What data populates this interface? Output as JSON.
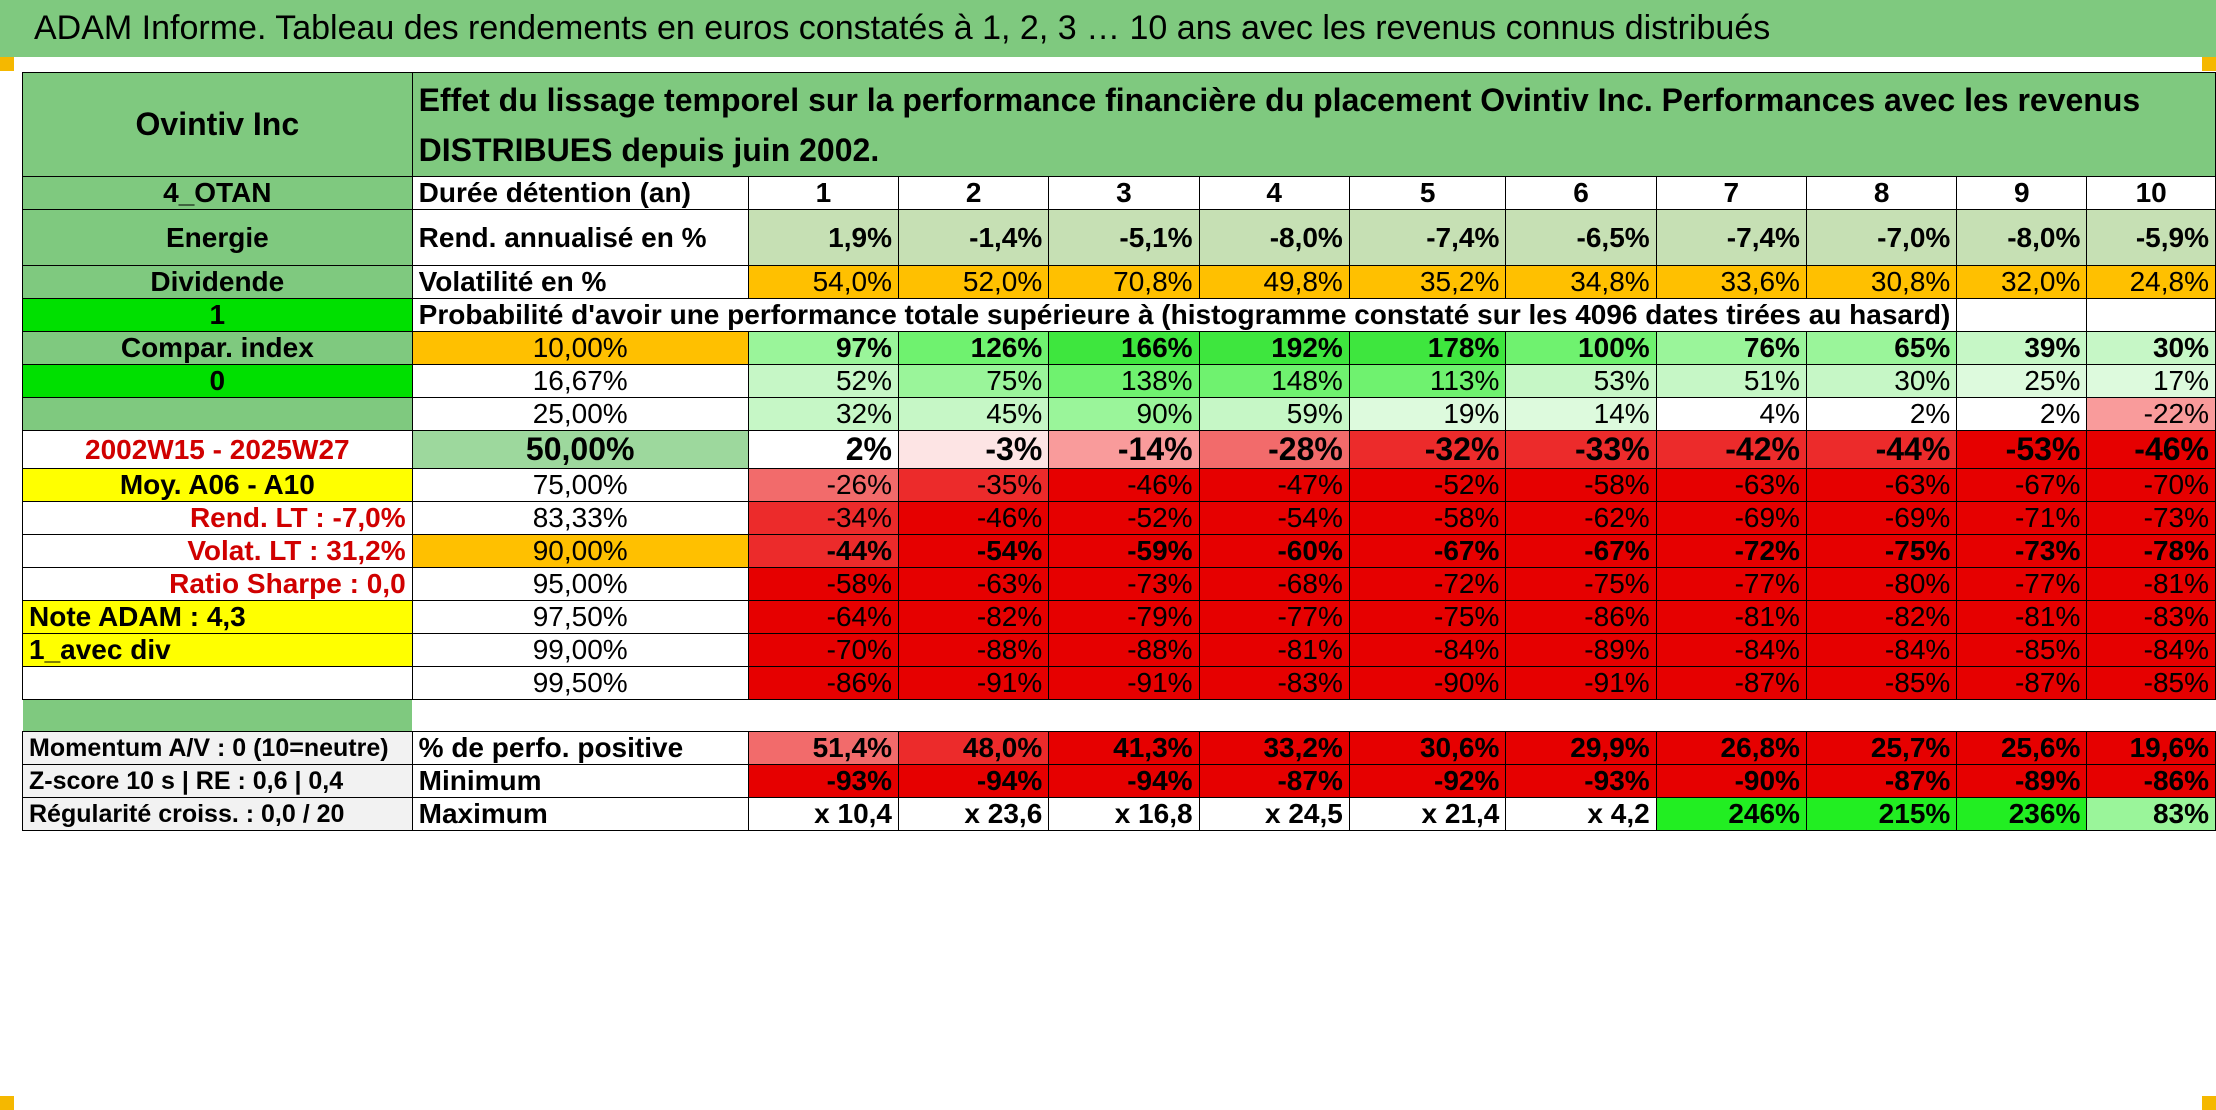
{
  "title": "ADAM Informe. Tableau des rendements en euros constatés à 1, 2, 3 … 10 ans avec les revenus connus distribués",
  "fund_name": "Ovintiv Inc",
  "description": "Effet du lissage temporel sur la performance financière du placement Ovintiv Inc. Performances avec les revenus DISTRIBUES depuis juin 2002.",
  "left": {
    "code": "4_OTAN",
    "sector": "Energie",
    "dividend": "Dividende",
    "one": "1",
    "compar": "Compar. index",
    "zero": "0",
    "period": "2002W15 - 2025W27",
    "moy": "Moy. A06 - A10",
    "rend_lt": "Rend. LT :   -7,0%",
    "volat_lt": "Volat. LT :   31,2%",
    "sharpe": "Ratio Sharpe :   0,0",
    "note": "Note ADAM : 4,3",
    "avec_div": "1_avec div",
    "momentum": "Momentum A/V : 0 (10=neutre)",
    "zscore": "Z-score 10 s | RE : 0,6 | 0,4",
    "regularite": "Régularité croiss. : 0,0 / 20"
  },
  "labels": {
    "duree": "Durée détention (an)",
    "rend": "Rend. annualisé en %",
    "vol": "Volatilité en %",
    "proba": "Probabilité d'avoir une performance totale supérieure à (histogramme constaté sur les 4096 dates tirées au hasard)",
    "perfpos": "% de perfo. positive",
    "min": "Minimum",
    "max": "Maximum"
  },
  "years": [
    "1",
    "2",
    "3",
    "4",
    "5",
    "6",
    "7",
    "8",
    "9",
    "10"
  ],
  "rend": [
    "1,9%",
    "-1,4%",
    "-5,1%",
    "-8,0%",
    "-7,4%",
    "-6,5%",
    "-7,4%",
    "-7,0%",
    "-8,0%",
    "-5,9%"
  ],
  "vol": [
    "54,0%",
    "52,0%",
    "70,8%",
    "49,8%",
    "35,2%",
    "34,8%",
    "33,6%",
    "30,8%",
    "32,0%",
    "24,8%"
  ],
  "prob_rows": [
    {
      "p": "10,00%",
      "v": [
        "97%",
        "126%",
        "166%",
        "192%",
        "178%",
        "100%",
        "76%",
        "65%",
        "39%",
        "30%"
      ]
    },
    {
      "p": "16,67%",
      "v": [
        "52%",
        "75%",
        "138%",
        "148%",
        "113%",
        "53%",
        "51%",
        "30%",
        "25%",
        "17%"
      ]
    },
    {
      "p": "25,00%",
      "v": [
        "32%",
        "45%",
        "90%",
        "59%",
        "19%",
        "14%",
        "4%",
        "2%",
        "2%",
        "-22%"
      ]
    },
    {
      "p": "50,00%",
      "v": [
        "2%",
        "-3%",
        "-14%",
        "-28%",
        "-32%",
        "-33%",
        "-42%",
        "-44%",
        "-53%",
        "-46%"
      ]
    },
    {
      "p": "75,00%",
      "v": [
        "-26%",
        "-35%",
        "-46%",
        "-47%",
        "-52%",
        "-58%",
        "-63%",
        "-63%",
        "-67%",
        "-70%"
      ]
    },
    {
      "p": "83,33%",
      "v": [
        "-34%",
        "-46%",
        "-52%",
        "-54%",
        "-58%",
        "-62%",
        "-69%",
        "-69%",
        "-71%",
        "-73%"
      ]
    },
    {
      "p": "90,00%",
      "v": [
        "-44%",
        "-54%",
        "-59%",
        "-60%",
        "-67%",
        "-67%",
        "-72%",
        "-75%",
        "-73%",
        "-78%"
      ]
    },
    {
      "p": "95,00%",
      "v": [
        "-58%",
        "-63%",
        "-73%",
        "-68%",
        "-72%",
        "-75%",
        "-77%",
        "-80%",
        "-77%",
        "-81%"
      ]
    },
    {
      "p": "97,50%",
      "v": [
        "-64%",
        "-82%",
        "-79%",
        "-77%",
        "-75%",
        "-86%",
        "-81%",
        "-82%",
        "-81%",
        "-83%"
      ]
    },
    {
      "p": "99,00%",
      "v": [
        "-70%",
        "-88%",
        "-88%",
        "-81%",
        "-84%",
        "-89%",
        "-84%",
        "-84%",
        "-85%",
        "-84%"
      ]
    },
    {
      "p": "99,50%",
      "v": [
        "-86%",
        "-91%",
        "-91%",
        "-83%",
        "-90%",
        "-91%",
        "-87%",
        "-85%",
        "-87%",
        "-85%"
      ]
    }
  ],
  "perfpos": [
    "51,4%",
    "48,0%",
    "41,3%",
    "33,2%",
    "30,6%",
    "29,9%",
    "26,8%",
    "25,7%",
    "25,6%",
    "19,6%"
  ],
  "min": [
    "-93%",
    "-94%",
    "-94%",
    "-87%",
    "-92%",
    "-93%",
    "-90%",
    "-87%",
    "-89%",
    "-86%"
  ],
  "max": [
    "x 10,4",
    "x 23,6",
    "x 16,8",
    "x 24,5",
    "x 21,4",
    "x 4,2",
    "246%",
    "215%",
    "236%",
    "83%"
  ]
}
